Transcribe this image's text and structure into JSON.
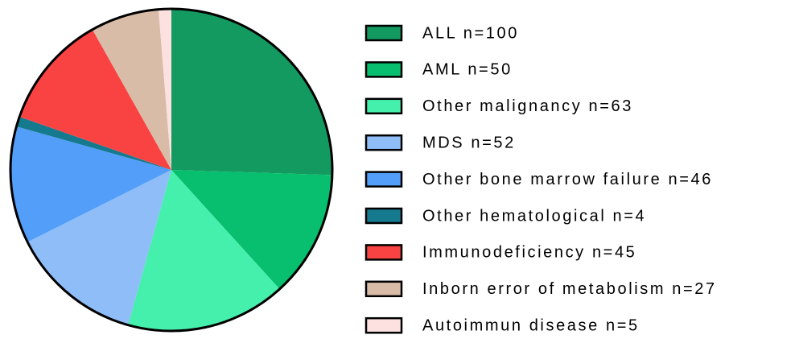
{
  "chart_data": {
    "type": "pie",
    "categories": [
      "ALL n=100",
      "AML n=50",
      "Other malignancy n=63",
      "MDS n=52",
      "Other bone marrow failure n=46",
      "Other hematological n=4",
      "Immunodeficiency n=45",
      "Inborn error of metabolism n=27",
      "Autoimmun disease n=5"
    ],
    "values": [
      100,
      50,
      63,
      52,
      46,
      4,
      45,
      27,
      5
    ],
    "colors": [
      "#139a61",
      "#07bf6e",
      "#45efac",
      "#8fbdf8",
      "#529ef9",
      "#167a8f",
      "#f94343",
      "#d8bca8",
      "#fde0e0"
    ],
    "legend": "right"
  }
}
